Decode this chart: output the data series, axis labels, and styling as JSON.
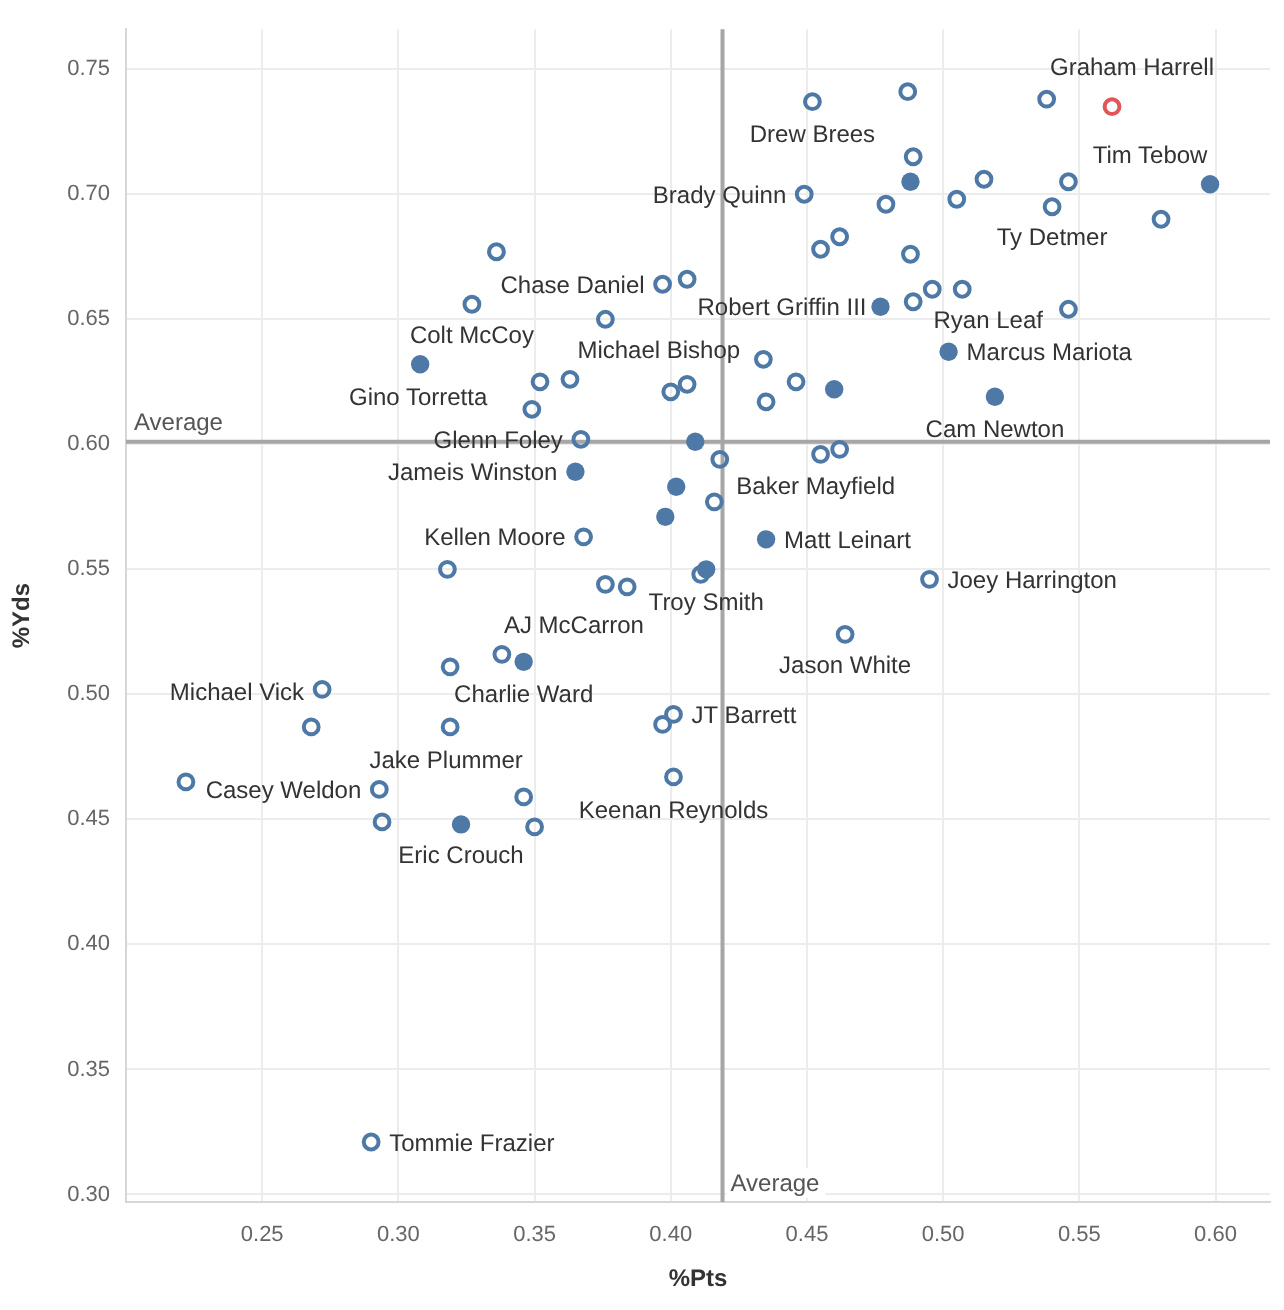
{
  "chart_data": {
    "type": "scatter",
    "xlabel": "%Pts",
    "ylabel": "%Yds",
    "xlim": [
      0.2,
      0.62
    ],
    "ylim": [
      0.297,
      0.766
    ],
    "xticks": [
      0.25,
      {
        "value": 0.3,
        "label": "0.30"
      },
      0.35,
      {
        "value": 0.4,
        "label": "0.40"
      },
      0.45,
      {
        "value": 0.5,
        "label": "0.50"
      },
      0.55,
      {
        "value": 0.6,
        "label": "0.60"
      }
    ],
    "yticks": [
      {
        "value": 0.3,
        "label": "0.30"
      },
      0.35,
      {
        "value": 0.4,
        "label": "0.40"
      },
      0.45,
      {
        "value": 0.5,
        "label": "0.50"
      },
      0.55,
      {
        "value": 0.6,
        "label": "0.60"
      },
      0.65,
      {
        "value": 0.7,
        "label": "0.70"
      },
      0.75
    ],
    "grid": true,
    "marker": "circle",
    "ref_lines": [
      {
        "axis": "x",
        "value": 0.419,
        "label": "Average",
        "color": "#a6a6a6"
      },
      {
        "axis": "y",
        "value": 0.601,
        "label": "Average",
        "color": "#a6a6a6"
      }
    ],
    "series": [
      {
        "color": "#4e79a7",
        "x": [
          0.452,
          0.487,
          0.538,
          0.489,
          0.449,
          0.479,
          0.515,
          0.505,
          0.546,
          0.54,
          0.58,
          0.336,
          0.462,
          0.455,
          0.488,
          0.327,
          0.397,
          0.406,
          0.376,
          0.489,
          0.496,
          0.507,
          0.546,
          0.352,
          0.363,
          0.349,
          0.4,
          0.406,
          0.434,
          0.435,
          0.446,
          0.367,
          0.418,
          0.455,
          0.462,
          0.416,
          0.368,
          0.318,
          0.411,
          0.376,
          0.384,
          0.495,
          0.464,
          0.338,
          0.319,
          0.272,
          0.268,
          0.319,
          0.401,
          0.397,
          0.222,
          0.293,
          0.294,
          0.346,
          0.35,
          0.401,
          0.29
        ],
        "values": [
          0.737,
          0.741,
          0.738,
          0.715,
          0.7,
          0.696,
          0.706,
          0.698,
          0.705,
          0.695,
          0.69,
          0.677,
          0.683,
          0.678,
          0.676,
          0.656,
          0.664,
          0.666,
          0.65,
          0.657,
          0.662,
          0.662,
          0.654,
          0.625,
          0.626,
          0.614,
          0.621,
          0.624,
          0.634,
          0.617,
          0.625,
          0.602,
          0.594,
          0.596,
          0.598,
          0.577,
          0.563,
          0.55,
          0.548,
          0.544,
          0.543,
          0.546,
          0.524,
          0.516,
          0.511,
          0.502,
          0.487,
          0.487,
          0.492,
          0.488,
          0.465,
          0.462,
          0.449,
          0.459,
          0.447,
          0.467,
          0.321
        ],
        "value_labels": [
          "Drew Brees",
          null,
          null,
          null,
          "Brady Quinn",
          null,
          null,
          null,
          null,
          "Ty Detmer",
          null,
          null,
          null,
          null,
          null,
          "Colt McCoy",
          "Chase Daniel",
          null,
          null,
          null,
          null,
          "Ryan Leaf",
          null,
          null,
          null,
          null,
          "Michael Bishop",
          null,
          null,
          null,
          null,
          "Glenn Foley",
          null,
          null,
          null,
          "Baker Mayfield",
          "Kellen Moore",
          null,
          null,
          null,
          null,
          "Joey Harrington",
          "Jason White",
          "AJ McCarron",
          null,
          "Michael Vick",
          null,
          "Jake Plummer",
          "JT Barrett",
          null,
          null,
          "Casey Weldon",
          null,
          null,
          null,
          "Keenan Reynolds",
          "Tommie Frazier"
        ]
      },
      {
        "color": "#4e79a7",
        "x": [
          0.488,
          0.598,
          0.308,
          0.477,
          0.502,
          0.519,
          0.46,
          0.409,
          0.365,
          0.402,
          0.398,
          0.435,
          0.413,
          0.346,
          0.323
        ],
        "values": [
          0.705,
          0.704,
          0.632,
          0.655,
          0.637,
          0.619,
          0.622,
          0.601,
          0.589,
          0.583,
          0.571,
          0.562,
          0.55,
          0.513,
          0.448
        ],
        "value_labels": [
          null,
          "Tim Tebow",
          "Gino Torretta",
          "Robert Griffin III",
          "Marcus Mariota",
          "Cam Newton",
          null,
          null,
          "Jameis Winston",
          null,
          null,
          "Matt Leinart",
          "Troy Smith",
          "Charlie Ward",
          "Eric Crouch"
        ]
      },
      {
        "color": "#e15759",
        "x": [
          0.562
        ],
        "values": [
          0.735
        ],
        "value_labels": [
          "Graham Harrell"
        ]
      }
    ]
  }
}
